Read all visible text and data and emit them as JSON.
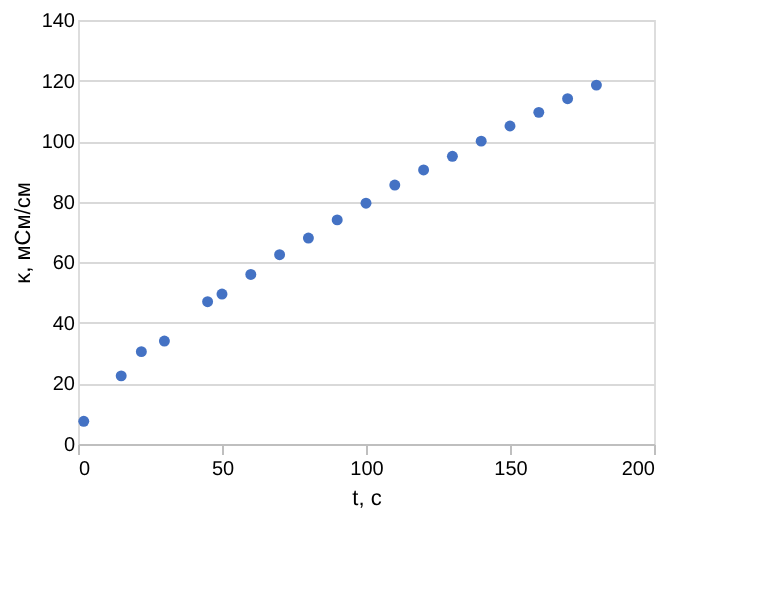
{
  "chart_data": {
    "type": "scatter",
    "xlabel": "t, c",
    "ylabel": "κ, мСм/см",
    "x": [
      2,
      15,
      22,
      30,
      45,
      50,
      60,
      70,
      80,
      90,
      100,
      110,
      120,
      130,
      140,
      150,
      160,
      170,
      180
    ],
    "series": [
      {
        "color": "#4472c4",
        "values": [
          7.5,
          22.5,
          30.5,
          34,
          47,
          49.5,
          56,
          62.5,
          68,
          74,
          79.5,
          85.5,
          90.5,
          95,
          100,
          105,
          109.5,
          114,
          118.5
        ]
      }
    ],
    "xlim": [
      0,
      200
    ],
    "xticks": [
      0,
      50,
      100,
      150,
      200
    ],
    "ylim": [
      0,
      140
    ],
    "yticks": [
      0,
      20,
      40,
      60,
      80,
      100,
      120,
      140
    ],
    "grid": "y",
    "marker": "circle"
  }
}
